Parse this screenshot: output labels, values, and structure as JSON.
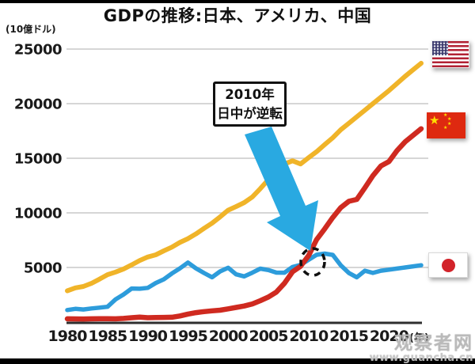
{
  "header": {
    "title": "GDPの推移:日本、アメリカ、中国",
    "unit_label": "(10億ドル)"
  },
  "annotation_box": {
    "line1": "2010年",
    "line2": "日中が逆転"
  },
  "x_axis": {
    "suffix": "(年)"
  },
  "watermark": {
    "site_name": "观察者网",
    "site_url": "www.guancha.cn"
  },
  "colors": {
    "usa_line": "#F0B429",
    "china_line": "#CF2A20",
    "japan_line": "#2D9CDB",
    "arrow": "#29A9E1",
    "grid": "#C9C9C9",
    "axis": "#2E2E2E",
    "text": "#1B1B1B"
  },
  "chart_data": {
    "type": "line",
    "title": "GDPの推移:日本、アメリカ、中国",
    "ylabel": "(10億ドル)",
    "xlabel_suffix": "(年)",
    "grid": true,
    "legend_position": "right-flags",
    "xlim": [
      1980,
      2024
    ],
    "ylim": [
      0,
      25000
    ],
    "x_ticks": [
      1980,
      1985,
      1990,
      1995,
      2000,
      2005,
      2010,
      2015,
      2020
    ],
    "y_ticks": [
      5000,
      10000,
      15000,
      20000,
      25000
    ],
    "x": [
      1980,
      1981,
      1982,
      1983,
      1984,
      1985,
      1986,
      1987,
      1988,
      1989,
      1990,
      1991,
      1992,
      1993,
      1994,
      1995,
      1996,
      1997,
      1998,
      1999,
      2000,
      2001,
      2002,
      2003,
      2004,
      2005,
      2006,
      2007,
      2008,
      2009,
      2010,
      2011,
      2012,
      2013,
      2014,
      2015,
      2016,
      2017,
      2018,
      2019,
      2020,
      2021,
      2022,
      2023,
      2024
    ],
    "series": [
      {
        "name": "日本",
        "flag": "japan",
        "color": "#2D9CDB",
        "values": [
          1100,
          1210,
          1150,
          1250,
          1320,
          1400,
          2080,
          2530,
          3070,
          3050,
          3130,
          3580,
          3910,
          4450,
          4910,
          5450,
          4920,
          4490,
          4100,
          4640,
          4970,
          4370,
          4180,
          4520,
          4890,
          4760,
          4530,
          4520,
          5040,
          5230,
          5700,
          6160,
          6270,
          6150,
          5200,
          4500,
          4100,
          4700,
          4500,
          4700,
          4800,
          4900,
          5000,
          5100,
          5200
        ]
      },
      {
        "name": "アメリカ",
        "flag": "usa",
        "color": "#F0B429",
        "values": [
          2860,
          3130,
          3260,
          3540,
          3930,
          4340,
          4580,
          4860,
          5240,
          5640,
          5960,
          6160,
          6520,
          6860,
          7290,
          7640,
          8070,
          8580,
          9060,
          9630,
          10250,
          10580,
          10940,
          11460,
          12220,
          13040,
          13820,
          14470,
          14770,
          14480,
          15050,
          15600,
          16250,
          16880,
          17610,
          18200,
          18800,
          19400,
          20000,
          20600,
          21200,
          21850,
          22500,
          23100,
          23700
        ]
      },
      {
        "name": "中国",
        "flag": "china",
        "color": "#CF2A20",
        "values": [
          300,
          290,
          280,
          300,
          310,
          310,
          300,
          330,
          400,
          450,
          400,
          410,
          430,
          440,
          560,
          730,
          860,
          960,
          1030,
          1090,
          1210,
          1340,
          1470,
          1660,
          1960,
          2290,
          2750,
          3550,
          4600,
          5100,
          6090,
          7550,
          8530,
          9570,
          10480,
          11060,
          11230,
          12300,
          13400,
          14300,
          14700,
          15700,
          16500,
          17100,
          17700
        ]
      }
    ],
    "annotation": {
      "lines": [
        "2010年",
        "日中が逆転"
      ],
      "target_year": 2010
    }
  }
}
